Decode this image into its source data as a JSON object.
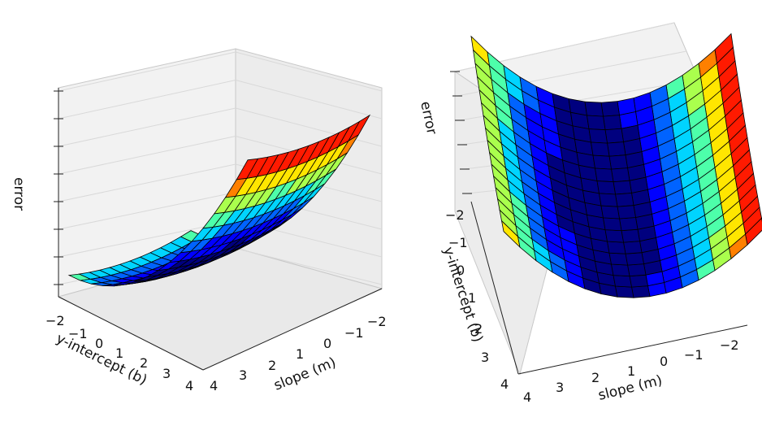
{
  "chart_data": [
    {
      "type": "surface3d",
      "title": "",
      "view": "elevated-front",
      "zlabel": "error",
      "xlabel": "slope (m)",
      "ylabel": "y-intercept (b)",
      "x_ticks": [
        "−2",
        "−1",
        "0",
        "1",
        "2",
        "3",
        "4"
      ],
      "y_ticks": [
        "−2",
        "−1",
        "0",
        "1",
        "2",
        "3",
        "4"
      ],
      "xlim": [
        -2,
        4
      ],
      "ylim": [
        -2,
        4
      ],
      "grid": true,
      "colormap": "jet",
      "surface": "error(m, b) = sum of squared residuals; parabolic trough in slope, shallow in intercept"
    },
    {
      "type": "surface3d",
      "title": "",
      "view": "top-down-rotated",
      "zlabel": "error",
      "xlabel": "slope (m)",
      "ylabel": "y-intercept (b)",
      "x_ticks": [
        "−2",
        "−1",
        "0",
        "1",
        "2",
        "3",
        "4"
      ],
      "y_ticks": [
        "−2",
        "−1",
        "0",
        "1",
        "2",
        "3",
        "4"
      ],
      "xlim": [
        -2,
        4
      ],
      "ylim": [
        -2,
        4
      ],
      "grid": true,
      "colormap": "jet",
      "surface": "same error surface viewed from above"
    }
  ],
  "colors": {
    "jet": [
      "#00007f",
      "#0000ff",
      "#0063ff",
      "#00d4ff",
      "#4dffaa",
      "#aaff4d",
      "#ffe600",
      "#ff8000",
      "#ff1a00",
      "#7f0000"
    ],
    "pane": "#f2f2f2",
    "grid": "#d9d9d9"
  }
}
